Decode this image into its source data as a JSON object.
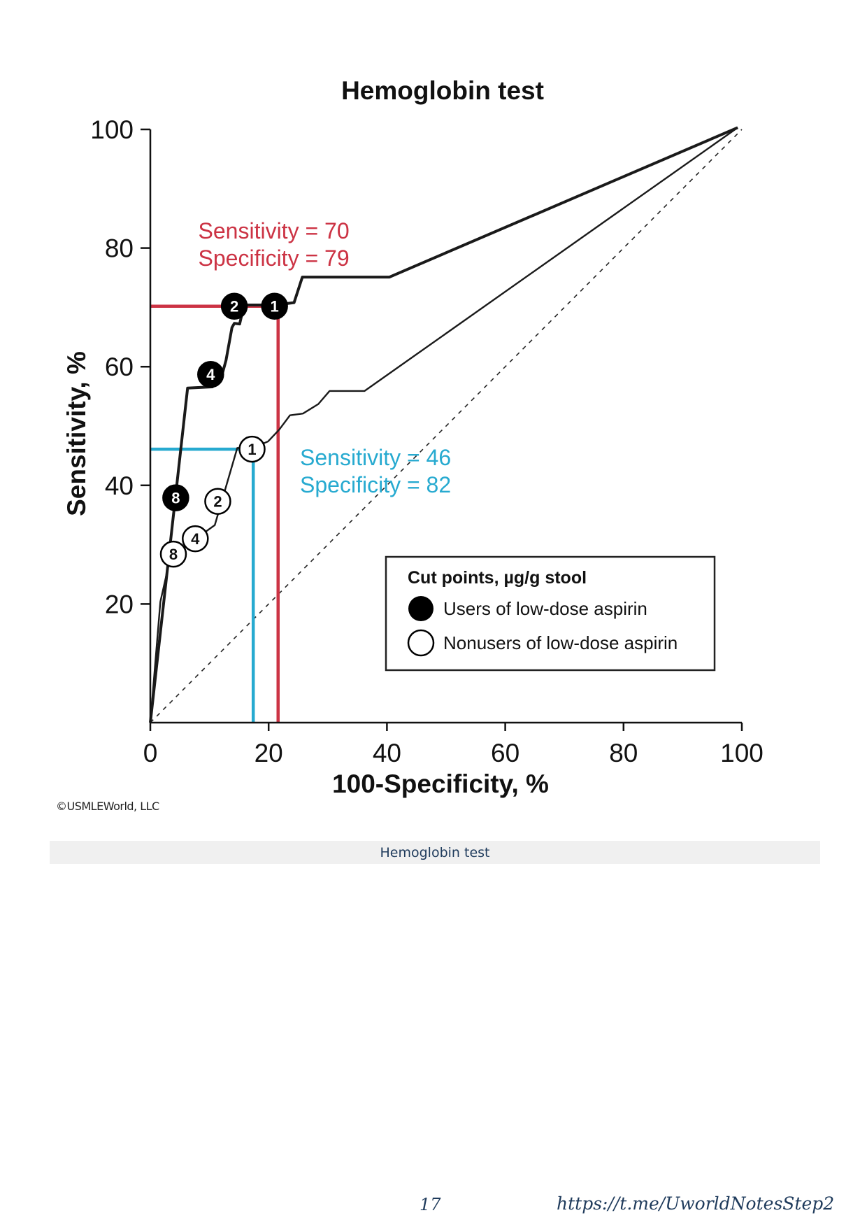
{
  "chart_data": {
    "type": "line",
    "title": "Hemoglobin test",
    "xlabel": "100-Specificity, %",
    "ylabel": "Sensitivity, %",
    "xlim": [
      0,
      100
    ],
    "ylim": [
      0,
      100
    ],
    "x_ticks": [
      0,
      20,
      40,
      60,
      80,
      100
    ],
    "y_ticks": [
      20,
      40,
      60,
      80,
      100
    ],
    "grid": false,
    "series": [
      {
        "name": "Users of low-dose aspirin",
        "color": "#1a1a1a",
        "x": [
          0,
          6.3,
          10.5,
          12.2,
          12.8,
          13.8,
          14.2,
          15.1,
          15.8,
          16.4,
          21.1,
          24.3,
          25.7,
          40.4,
          99.3
        ],
        "y": [
          0,
          56.4,
          56.6,
          58.9,
          61.1,
          66.6,
          67.3,
          67.2,
          70.2,
          70.4,
          70.4,
          70.8,
          75.1,
          75.1,
          100.3
        ],
        "cut_points": [
          {
            "label": "2",
            "x": 14.2,
            "y": 70.2
          },
          {
            "label": "1",
            "x": 21.0,
            "y": 70.2
          },
          {
            "label": "4",
            "x": 10.2,
            "y": 58.7
          },
          {
            "label": "8",
            "x": 4.3,
            "y": 37.9
          }
        ]
      },
      {
        "name": "Nonusers of low-dose aspirin",
        "color": "#1a1a1a",
        "x": [
          0,
          1.7,
          3.4,
          10.9,
          14.7,
          17.3,
          19.9,
          21.8,
          23.6,
          25.8,
          28.4,
          30.3,
          36.2,
          99.3
        ],
        "y": [
          0,
          20.4,
          27.9,
          33.3,
          46.3,
          46.3,
          47.4,
          49.4,
          51.8,
          52.1,
          53.7,
          55.9,
          55.9,
          100.3
        ],
        "cut_points": [
          {
            "label": "1",
            "x": 17.2,
            "y": 46.1
          },
          {
            "label": "2",
            "x": 11.4,
            "y": 37.3
          },
          {
            "label": "4",
            "x": 7.6,
            "y": 31.0
          },
          {
            "label": "8",
            "x": 3.9,
            "y": 28.4
          }
        ]
      }
    ],
    "reference_line": {
      "x": [
        0,
        100
      ],
      "y": [
        0,
        100
      ],
      "style": "dashed"
    },
    "annotations": [
      {
        "line1": "Sensitivity = 70",
        "line2": "Specificity = 79",
        "color": "#cc3344",
        "x": 8.1,
        "y": 81.6,
        "guide": {
          "x": 21.6,
          "y": 70.2
        }
      },
      {
        "line1": "Sensitivity = 46",
        "line2": "Specificity = 82",
        "color": "#27aad0",
        "x": 25.3,
        "y": 43.4,
        "guide": {
          "x": 17.4,
          "y": 46.1
        }
      }
    ],
    "legend": {
      "title": "Cut points, µg/g stool",
      "placement": "bottom-right",
      "items": [
        {
          "label": "Users of low-dose aspirin",
          "marker": "filled-circle"
        },
        {
          "label": "Nonusers of low-dose aspirin",
          "marker": "open-circle"
        }
      ]
    }
  },
  "copyright": "©USMLEWorld, LLC",
  "caption": "Hemoglobin test",
  "page_number": "17",
  "link": "https://t.me/UworldNotesStep2"
}
